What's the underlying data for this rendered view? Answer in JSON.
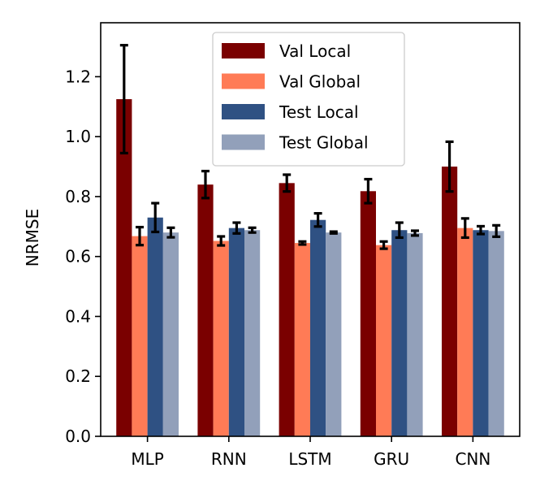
{
  "chart_data": {
    "type": "bar",
    "title": "",
    "xlabel": "",
    "ylabel": "NRMSE",
    "ylim": [
      0,
      1.38
    ],
    "yticks": [
      "0.0",
      "0.2",
      "0.4",
      "0.6",
      "0.8",
      "1.0",
      "1.2"
    ],
    "categories": [
      "MLP",
      "RNN",
      "LSTM",
      "GRU",
      "CNN"
    ],
    "legend_position": "top-center",
    "grid": false,
    "series": [
      {
        "name": "Val Local",
        "color": "#7a0000",
        "values": [
          1.125,
          0.84,
          0.845,
          0.818,
          0.9
        ],
        "errors": [
          0.18,
          0.045,
          0.028,
          0.04,
          0.083
        ]
      },
      {
        "name": "Val Global",
        "color": "#ff7b56",
        "values": [
          0.668,
          0.652,
          0.645,
          0.638,
          0.695
        ],
        "errors": [
          0.03,
          0.015,
          0.005,
          0.012,
          0.032
        ]
      },
      {
        "name": "Test Local",
        "color": "#2f5183",
        "values": [
          0.73,
          0.695,
          0.722,
          0.688,
          0.688
        ],
        "errors": [
          0.048,
          0.018,
          0.022,
          0.025,
          0.013
        ]
      },
      {
        "name": "Test Global",
        "color": "#92a0ba",
        "values": [
          0.68,
          0.688,
          0.68,
          0.678,
          0.685
        ],
        "errors": [
          0.016,
          0.008,
          0.003,
          0.008,
          0.019
        ]
      }
    ]
  }
}
